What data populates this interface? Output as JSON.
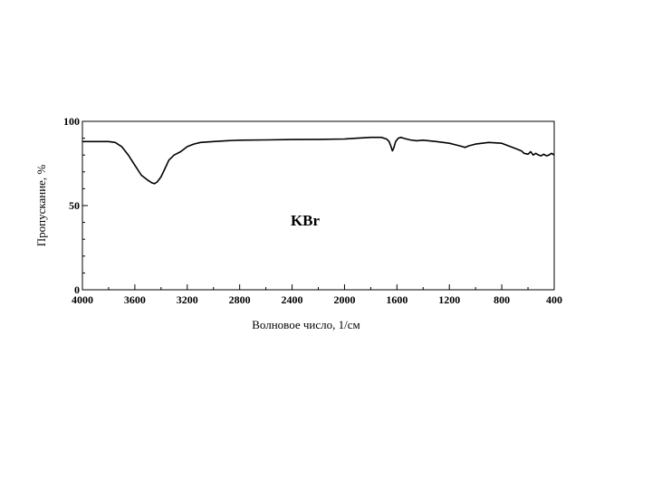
{
  "chart_data": {
    "type": "line",
    "title": "",
    "xlabel": "Волновое число, 1/см",
    "ylabel": "Пропускание, %",
    "annotation": "KBr",
    "xlim": [
      4000,
      400
    ],
    "ylim": [
      0,
      100
    ],
    "x_reversed": true,
    "grid": false,
    "legend": "none",
    "line_color": "#000000",
    "x_ticks": [
      4000,
      3600,
      3200,
      2800,
      2400,
      2000,
      1600,
      1200,
      800,
      400
    ],
    "y_ticks": [
      0,
      50,
      100
    ],
    "series": [
      {
        "x": [
          4000,
          3900,
          3800,
          3750,
          3700,
          3650,
          3600,
          3550,
          3500,
          3470,
          3450,
          3430,
          3400,
          3370,
          3340,
          3300,
          3250,
          3200,
          3150,
          3100,
          3000,
          2900,
          2800,
          2600,
          2400,
          2200,
          2000,
          1900,
          1800,
          1720,
          1680,
          1660,
          1645,
          1635,
          1625,
          1610,
          1590,
          1570,
          1550,
          1500,
          1450,
          1400,
          1300,
          1200,
          1150,
          1100,
          1080,
          1050,
          1000,
          900,
          800,
          750,
          700,
          650,
          630,
          600,
          580,
          560,
          540,
          520,
          500,
          480,
          460,
          440,
          420,
          400
        ],
        "y": [
          88,
          88,
          88,
          87.5,
          85,
          80,
          74,
          68,
          65,
          63.5,
          63,
          64,
          67,
          72,
          77,
          80,
          82,
          85,
          86.5,
          87.5,
          88,
          88.5,
          88.8,
          89,
          89.2,
          89.3,
          89.5,
          90,
          90.5,
          90.5,
          89.5,
          88,
          85,
          82.5,
          84,
          88,
          90,
          90.5,
          90,
          89,
          88.5,
          88.8,
          88,
          87,
          86,
          85,
          84.5,
          85.5,
          86.5,
          87.5,
          87,
          85.5,
          84,
          82.5,
          81,
          80.5,
          82,
          80,
          81,
          80,
          79.5,
          80.5,
          79.5,
          80,
          81,
          80
        ]
      }
    ]
  }
}
